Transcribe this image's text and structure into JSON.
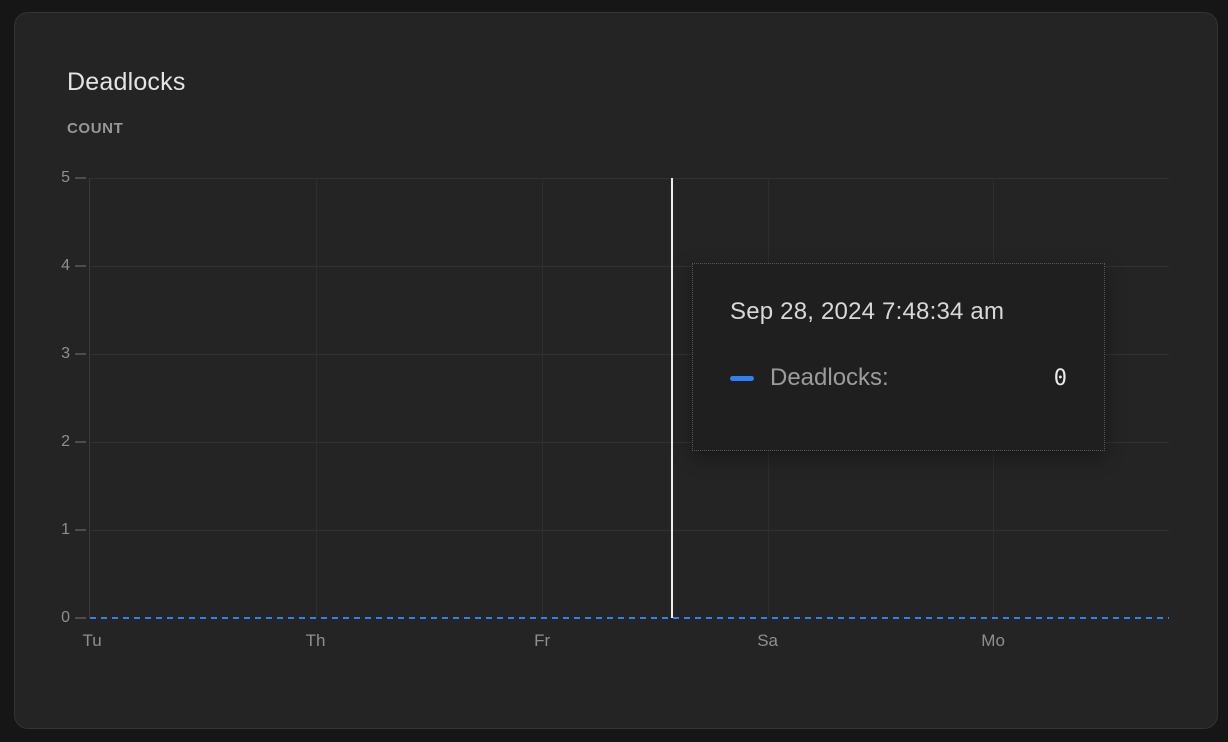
{
  "card": {
    "title": "Deadlocks",
    "unit_label": "COUNT"
  },
  "chart_data": {
    "type": "line",
    "title": "Deadlocks",
    "ylabel": "COUNT",
    "xlabel": "",
    "ylim": [
      0,
      5
    ],
    "grid": true,
    "legend_position": "none",
    "y_ticks": [
      5,
      4,
      3,
      2,
      1,
      0
    ],
    "x_ticks": [
      {
        "label": "Tu",
        "pct": 0.2,
        "gridline": false
      },
      {
        "label": "Th",
        "pct": 20.9,
        "gridline": true
      },
      {
        "label": "Fr",
        "pct": 41.9,
        "gridline": true
      },
      {
        "label": "Sa",
        "pct": 62.8,
        "gridline": true
      },
      {
        "label": "Mo",
        "pct": 83.7,
        "gridline": true
      }
    ],
    "series": [
      {
        "name": "Deadlocks",
        "color": "#2f80f6",
        "line_style": "dashed",
        "categories": [
          "Tu",
          "Th",
          "Fr",
          "Sa",
          "Mo"
        ],
        "values": [
          0,
          0,
          0,
          0,
          0
        ]
      }
    ],
    "crosshair": {
      "pct": 53.8,
      "color": "#ececec"
    }
  },
  "tooltip": {
    "timestamp": "Sep 28, 2024 7:48:34 am",
    "series_label": "Deadlocks:",
    "value": "0",
    "swatch_color": "#2f80f6"
  },
  "colors": {
    "page_bg": "#161616",
    "card_bg": "#242424",
    "grid": "#323232",
    "accent_blue": "#2f80f6",
    "crosshair": "#ececec",
    "tooltip_bg": "#1f1f1f"
  }
}
